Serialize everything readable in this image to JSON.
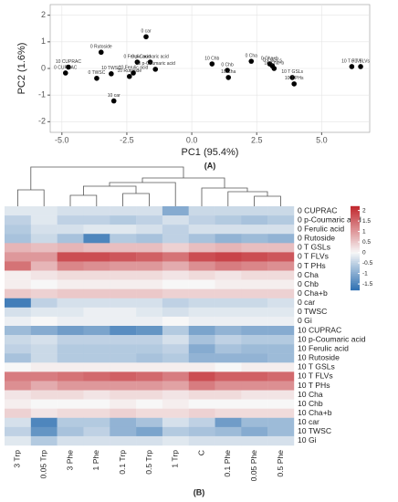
{
  "chart_data": [
    {
      "type": "scatter",
      "panel": "(A)",
      "x_label": "PC1 (95.4%)",
      "y_label": "PC2 (1.6%)",
      "labels": [
        "0 CUPRAC",
        "10 CUPRAC",
        "0 Rutoside",
        "0 TWSC",
        "10 TWSC",
        "10 car",
        "10 Rutoside",
        "0 Ferulic acid",
        "0 car",
        "10 Ferulic acid",
        "0 p-Coumaric acid",
        "10 p-Coumaric acid",
        "10 Chb",
        "0 Chb",
        "10 Cha",
        "0 Cha",
        "0 Cha+b",
        "0 T GSLs",
        "10 Cha+b",
        "10 T GSLs",
        "10 T PHs",
        "10 T FLVs",
        "0 T FLVs"
      ],
      "x": [
        -4.86,
        -4.75,
        -3.49,
        -3.66,
        -3.1,
        -3.0,
        -2.4,
        -2.1,
        -1.76,
        -2.25,
        -1.6,
        -1.4,
        0.78,
        1.37,
        1.41,
        2.29,
        3.0,
        3.1,
        3.17,
        3.87,
        3.94,
        6.16,
        6.5
      ],
      "y": [
        -0.17,
        0.05,
        0.61,
        -0.37,
        -0.2,
        -1.22,
        -0.3,
        0.24,
        1.19,
        -0.17,
        0.24,
        -0.03,
        0.17,
        -0.07,
        -0.34,
        0.27,
        0.17,
        0.1,
        0.0,
        -0.34,
        -0.58,
        0.07,
        0.07
      ],
      "color": "#000000",
      "xlim": [
        -5.45,
        6.85
      ],
      "ylim": [
        -2.4,
        2.4
      ],
      "xticks": [
        {
          "value": -5,
          "label": "-5.0"
        },
        {
          "value": -2.5,
          "label": "-2.5"
        },
        {
          "value": 0,
          "label": "0.0"
        },
        {
          "value": 2.5,
          "label": "2.5"
        },
        {
          "value": 5,
          "label": "5.0"
        }
      ],
      "yticks": [
        -2,
        -1,
        0,
        1,
        2
      ],
      "grid": true
    },
    {
      "type": "heatmap",
      "panel": "(B)",
      "columns": [
        "3 Trp",
        "0.05 Trp",
        "3 Phe",
        "1 Phe",
        "0.1 Trp",
        "0.5 Trp",
        "1 Trp",
        "C",
        "0.1 Phe",
        "0.05 Phe",
        "0.5 Phe"
      ],
      "rows": [
        "0 CUPRAC",
        "0 p-Coumaric acid",
        "0 Ferulic acid",
        "0 Rutoside",
        "0 T GSLs",
        "0 T FLVs",
        "0 T PHs",
        "0 Cha",
        "0 Chb",
        "0 Cha+b",
        "0 car",
        "0 TWSC",
        "0 Gi",
        "10 CUPRAC",
        "10 p-Coumaric acid",
        "10 Ferulic acid",
        "10 Rutoside",
        "10 T GSLs",
        "10 T FLVs",
        "10 T PHs",
        "10 Cha",
        "10 Chb",
        "10 Cha+b",
        "10 car",
        "10 TWSC",
        "10 Gi"
      ],
      "values": [
        [
          -0.2,
          -0.2,
          -0.3,
          -0.3,
          -0.3,
          -0.3,
          -1.0,
          -0.4,
          -0.4,
          -0.4,
          -0.4
        ],
        [
          -0.5,
          -0.2,
          -0.5,
          -0.5,
          -0.6,
          -0.5,
          -0.3,
          -0.5,
          -0.6,
          -0.7,
          -0.6
        ],
        [
          -0.6,
          -0.3,
          -0.3,
          -0.2,
          -0.2,
          -0.3,
          -0.5,
          -0.3,
          -0.3,
          -0.3,
          -0.3
        ],
        [
          -0.7,
          -0.4,
          -0.7,
          -1.5,
          -0.6,
          -0.7,
          -0.5,
          -0.7,
          -0.9,
          -0.8,
          -0.9
        ],
        [
          0.7,
          0.6,
          0.7,
          0.6,
          0.6,
          0.6,
          0.4,
          0.6,
          0.7,
          0.6,
          0.6
        ],
        [
          1.0,
          1.0,
          1.8,
          1.8,
          1.7,
          1.6,
          1.4,
          1.8,
          1.9,
          1.8,
          1.7
        ],
        [
          1.4,
          0.7,
          1.2,
          1.1,
          1.0,
          1.0,
          0.8,
          1.1,
          1.3,
          1.2,
          1.1
        ],
        [
          0.1,
          0.2,
          0.3,
          0.3,
          0.3,
          0.3,
          0.2,
          0.3,
          0.2,
          0.3,
          0.3
        ],
        [
          0.1,
          0.0,
          0.1,
          0.1,
          0.1,
          0.1,
          0.0,
          0.0,
          0.1,
          0.1,
          0.1
        ],
        [
          0.5,
          0.4,
          0.5,
          0.5,
          0.5,
          0.5,
          0.4,
          0.4,
          0.4,
          0.4,
          0.4
        ],
        [
          -1.6,
          -0.5,
          -0.3,
          -0.3,
          -0.3,
          -0.3,
          -0.5,
          -0.4,
          -0.4,
          -0.4,
          -0.3
        ],
        [
          -0.3,
          -0.2,
          -0.2,
          -0.1,
          -0.1,
          -0.2,
          -0.3,
          -0.2,
          -0.2,
          -0.2,
          -0.2
        ],
        [
          -0.1,
          0.0,
          -0.1,
          -0.1,
          -0.1,
          -0.1,
          0.0,
          -0.1,
          -0.1,
          -0.1,
          -0.1
        ],
        [
          -0.8,
          -1.0,
          -1.2,
          -1.1,
          -1.4,
          -1.3,
          -0.6,
          -1.1,
          -0.9,
          -1.0,
          -1.0
        ],
        [
          -0.4,
          -0.3,
          -0.5,
          -0.5,
          -0.5,
          -0.5,
          -0.3,
          -0.7,
          -0.5,
          -0.6,
          -0.6
        ],
        [
          -0.5,
          -0.4,
          -0.6,
          -0.6,
          -0.6,
          -0.6,
          -0.5,
          -1.0,
          -0.7,
          -0.8,
          -0.8
        ],
        [
          -0.7,
          -0.4,
          -0.6,
          -0.6,
          -0.6,
          -0.7,
          -0.6,
          -0.9,
          -0.9,
          -0.9,
          -0.8
        ],
        [
          0.0,
          0.1,
          0.1,
          0.1,
          0.1,
          0.1,
          0.1,
          0.1,
          0.0,
          0.1,
          0.1
        ],
        [
          1.3,
          1.3,
          1.4,
          1.5,
          1.6,
          1.5,
          1.3,
          1.8,
          1.6,
          1.6,
          1.5
        ],
        [
          1.1,
          0.8,
          1.0,
          1.0,
          1.0,
          1.0,
          0.9,
          1.3,
          1.1,
          1.1,
          1.1
        ],
        [
          0.2,
          0.3,
          0.3,
          0.2,
          0.3,
          0.3,
          0.2,
          0.3,
          0.3,
          0.2,
          0.2
        ],
        [
          0.1,
          0.0,
          0.0,
          0.0,
          0.1,
          0.0,
          0.1,
          0.0,
          0.0,
          0.0,
          0.0
        ],
        [
          0.4,
          0.2,
          0.3,
          0.3,
          0.4,
          0.3,
          0.3,
          0.4,
          0.3,
          0.3,
          0.3
        ],
        [
          -0.3,
          -1.5,
          -0.6,
          -0.6,
          -0.9,
          -0.7,
          -0.3,
          -0.5,
          -1.2,
          -0.8,
          -0.8
        ],
        [
          -0.5,
          -1.3,
          -0.7,
          -0.5,
          -0.9,
          -1.1,
          -0.6,
          -0.7,
          -0.8,
          -1.0,
          -0.8
        ],
        [
          -0.2,
          -0.6,
          -0.3,
          -0.3,
          -0.3,
          -0.3,
          -0.2,
          -0.3,
          -0.3,
          -0.3,
          -0.3
        ]
      ],
      "clim": [
        -1.8,
        2.2
      ],
      "colors": [
        "#2c6fb1",
        "#f7f7f7",
        "#c1272d"
      ],
      "cticks": [
        2,
        1.5,
        1,
        0.5,
        0,
        -0.5,
        -1,
        -1.5
      ]
    }
  ]
}
